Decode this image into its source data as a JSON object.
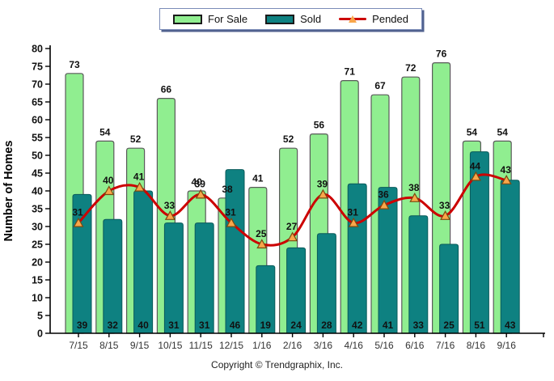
{
  "legend": {
    "items": [
      {
        "label": "For Sale"
      },
      {
        "label": "Sold"
      },
      {
        "label": "Pended"
      }
    ]
  },
  "footer": {
    "copyright": "Copyright © Trendgraphix, Inc."
  },
  "chart_data": {
    "type": "bar",
    "categories": [
      "7/15",
      "8/15",
      "9/15",
      "10/15",
      "11/15",
      "12/15",
      "1/16",
      "2/16",
      "3/16",
      "4/16",
      "5/16",
      "6/16",
      "7/16",
      "8/16",
      "9/16"
    ],
    "series": [
      {
        "name": "For Sale",
        "type": "bar",
        "color": "#90EE90",
        "values": [
          73,
          54,
          52,
          66,
          40,
          38,
          41,
          52,
          56,
          71,
          67,
          72,
          76,
          54,
          54
        ]
      },
      {
        "name": "Sold",
        "type": "bar",
        "color": "#0E8181",
        "values": [
          39,
          32,
          40,
          31,
          31,
          46,
          19,
          24,
          28,
          42,
          41,
          33,
          25,
          51,
          43
        ]
      },
      {
        "name": "Pended",
        "type": "line",
        "color": "#CC0000",
        "marker": "triangle",
        "marker_color": "#F9A64A",
        "values": [
          31,
          40,
          41,
          33,
          39,
          31,
          25,
          27,
          39,
          31,
          36,
          38,
          33,
          44,
          43
        ]
      }
    ],
    "ylabel": "Number of Homes",
    "ylim": [
      0,
      80
    ],
    "ytick_step": 5,
    "grid": false,
    "legend_position": "top"
  }
}
